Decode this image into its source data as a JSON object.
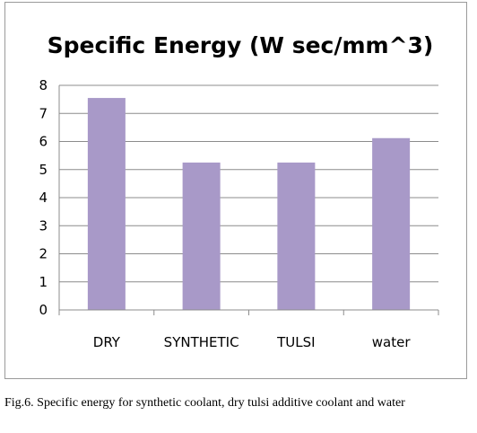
{
  "chart_data": {
    "type": "bar",
    "title": "Specific Energy (W sec/mm^3)",
    "categories": [
      "DRY",
      "SYNTHETIC",
      "TULSI",
      "water"
    ],
    "values": [
      7.55,
      5.25,
      5.25,
      6.12
    ],
    "ylim": [
      0,
      8
    ],
    "yticks": [
      0,
      1,
      2,
      3,
      4,
      5,
      6,
      7,
      8
    ],
    "xlabel": "",
    "ylabel": "",
    "grid": true,
    "legend": false,
    "bar_color": "#a899c8",
    "grid_color": "#8c8c8c"
  },
  "caption": "Fig.6. Specific energy for synthetic coolant, dry tulsi additive coolant and water"
}
